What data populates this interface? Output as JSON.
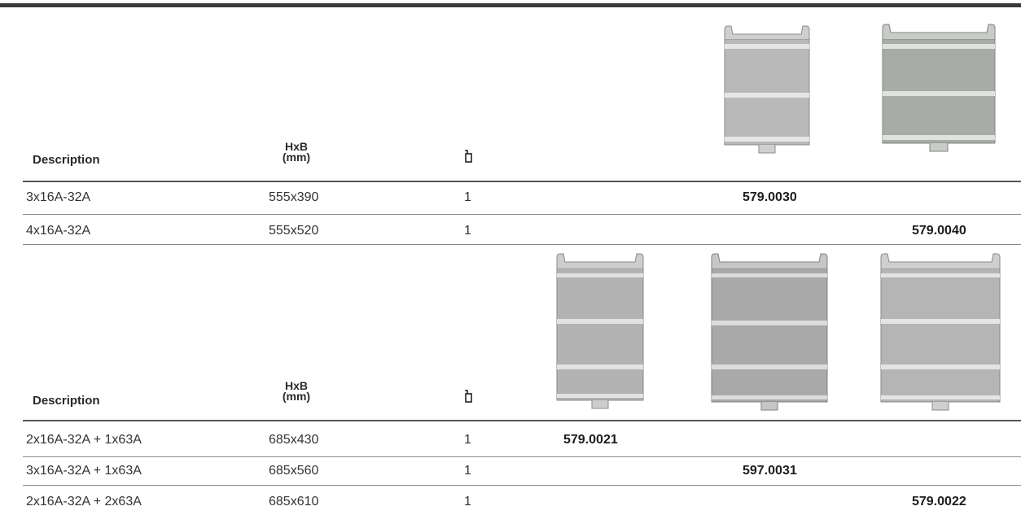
{
  "section1": {
    "header": {
      "description": "Description",
      "size_top": "HxB",
      "size_bottom": "(mm)"
    },
    "images": [
      {
        "name": "panel-image-579-0030",
        "shade": "#b8b8b8"
      },
      {
        "name": "panel-image-579-0040",
        "shade": "#a6aba6"
      }
    ],
    "rows": [
      {
        "description": "3x16A-32A",
        "size": "555x390",
        "qty": "1",
        "code": "579.0030"
      },
      {
        "description": "4x16A-32A",
        "size": "555x520",
        "qty": "1",
        "code": "579.0040"
      }
    ]
  },
  "section2": {
    "header": {
      "description": "Description",
      "size_top": "HxB",
      "size_bottom": "(mm)"
    },
    "images": [
      {
        "name": "panel-image-579-0021",
        "shade": "#b2b2b2"
      },
      {
        "name": "panel-image-597-0031",
        "shade": "#a9a9a9"
      },
      {
        "name": "panel-image-579-0022",
        "shade": "#b5b5b5"
      }
    ],
    "rows": [
      {
        "description": "2x16A-32A + 1x63A",
        "size": "685x430",
        "qty": "1",
        "code": "579.0021"
      },
      {
        "description": "3x16A-32A + 1x63A",
        "size": "685x560",
        "qty": "1",
        "code": "597.0031"
      },
      {
        "description": "2x16A-32A + 2x63A",
        "size": "685x610",
        "qty": "1",
        "code": "579.0022"
      }
    ]
  },
  "icons": {
    "quantity": "package-icon"
  }
}
